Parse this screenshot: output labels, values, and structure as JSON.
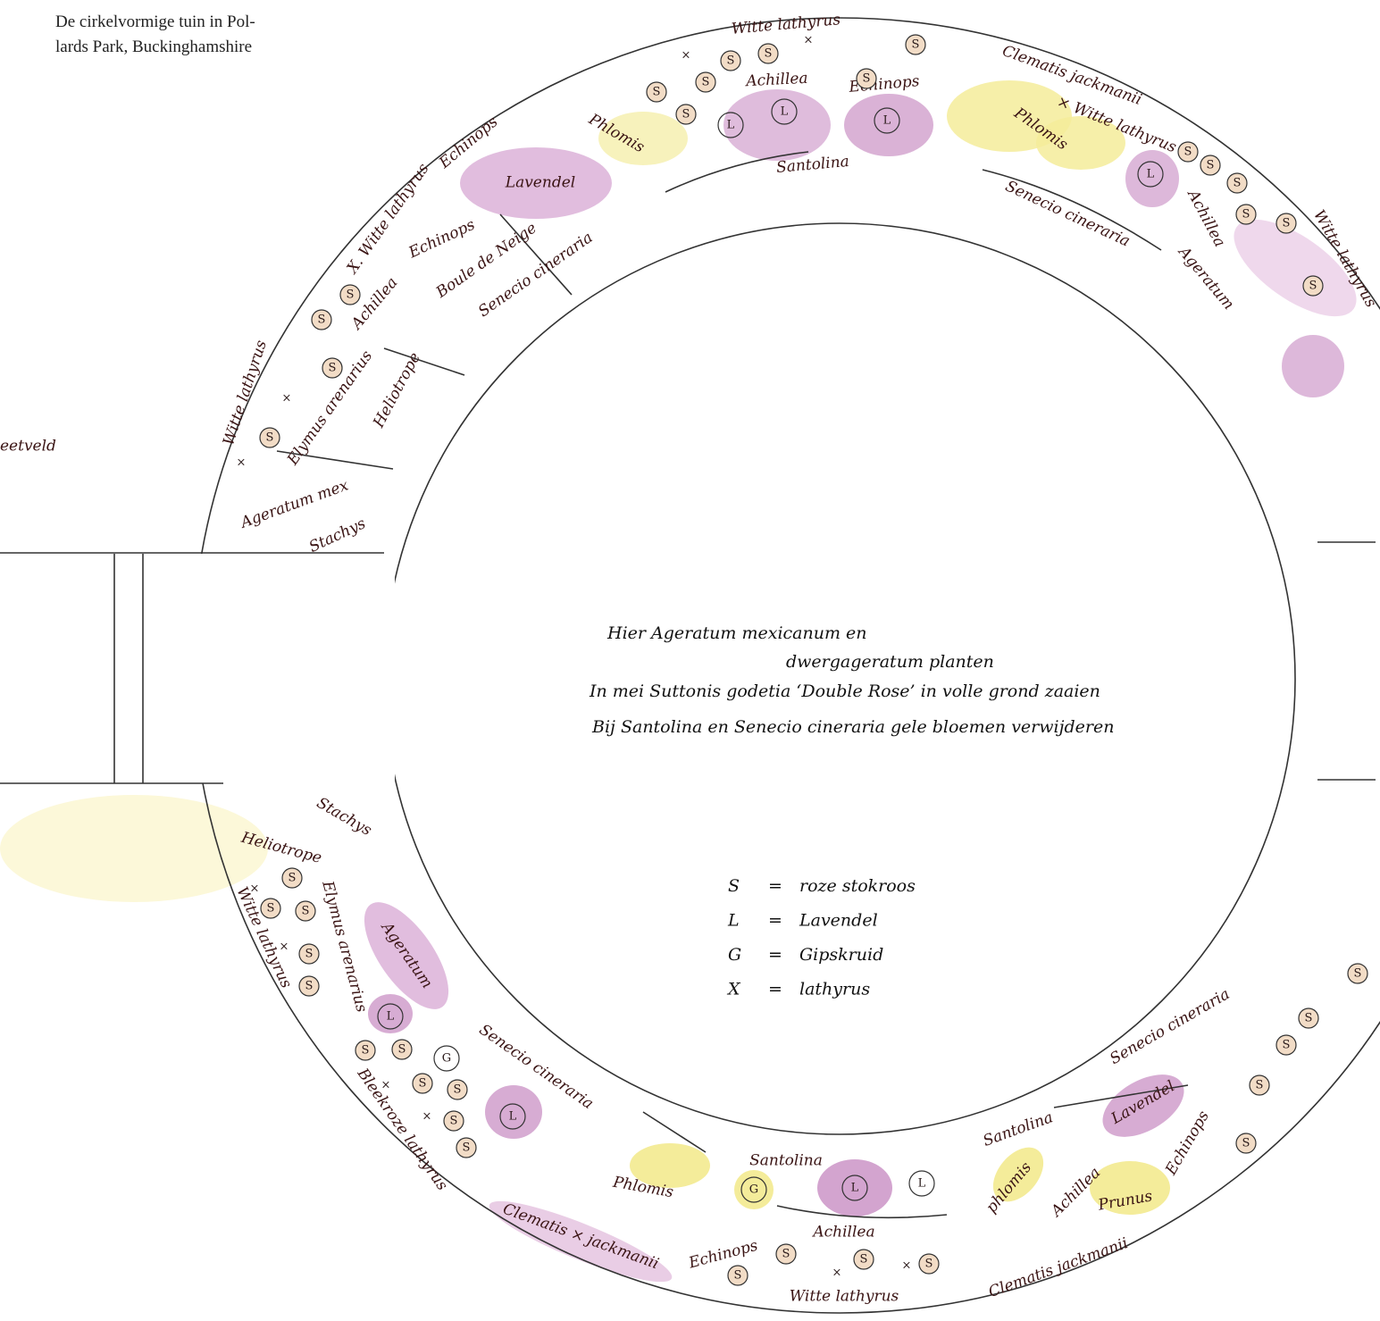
{
  "caption": [
    "De cirkelvormige tuin in Pol-",
    "lards Park, Buckinghamshire"
  ],
  "side_label": "eetveld",
  "plants": [
    "Witte lathyrus",
    "Clematis jackmanii",
    "× Witte lathyrus",
    "Achillea",
    "Echinops",
    "Phlomis",
    "Phlomis",
    "Lavendel",
    "Santolina",
    "Senecio cineraria",
    "Achillea",
    "Ageratum",
    "Echinops",
    "X. Witte lathyrus",
    "Echinops",
    "Achillea",
    "Boule de Neige",
    "Senecio cineraria",
    "Heliotrope",
    "Elymus arenarius",
    "Witte lathyrus",
    "Ageratum mex",
    "Stachys",
    "Witte lathyrus",
    "Stachys",
    "Heliotrope",
    "Elymus arenarius",
    "Witte lathyrus",
    "Ageratum",
    "Senecio cineraria",
    "Bleekroze lathyrus",
    "Clematis × jackmanii",
    "Phlomis",
    "Santolina",
    "Achillea",
    "Echinops",
    "Witte lathyrus",
    "Santolina",
    "phlomis",
    "Achillea",
    "Prunus",
    "Clematis jackmanii",
    "Lavendel",
    "Echinops",
    "Senecio cineraria"
  ],
  "notes": [
    "Hier Ageratum mexicanum en",
    "dwergageratum planten",
    "In mei Suttonis godetia ‘Double Rose’ in volle grond zaaien",
    "Bij Santolina en Senecio cineraria gele bloemen verwijderen"
  ],
  "legend": [
    {
      "symbol": "S",
      "sign": "=",
      "meaning": "roze stokroos"
    },
    {
      "symbol": "L",
      "sign": "=",
      "meaning": "Lavendel"
    },
    {
      "symbol": "G",
      "sign": "=",
      "meaning": "Gipskruid"
    },
    {
      "symbol": "X",
      "sign": "=",
      "meaning": "lathyrus"
    }
  ],
  "markers": [
    "S",
    "S",
    "S",
    "S",
    "S",
    "S",
    "S",
    "L",
    "L",
    "L",
    "L",
    "×",
    "×",
    "S",
    "S",
    "S",
    "S",
    "S",
    "S",
    "S",
    "S",
    "S",
    "S",
    "×",
    "×",
    "S",
    "S",
    "S",
    "S",
    "S",
    "S",
    "S",
    "S",
    "S",
    "S",
    "S",
    "S",
    "S",
    "S",
    "S",
    "×",
    "×",
    "×",
    "×",
    "×",
    "×",
    "L",
    "L",
    "L",
    "L",
    "G",
    "G",
    "S",
    "S",
    "S",
    "S",
    "S"
  ]
}
